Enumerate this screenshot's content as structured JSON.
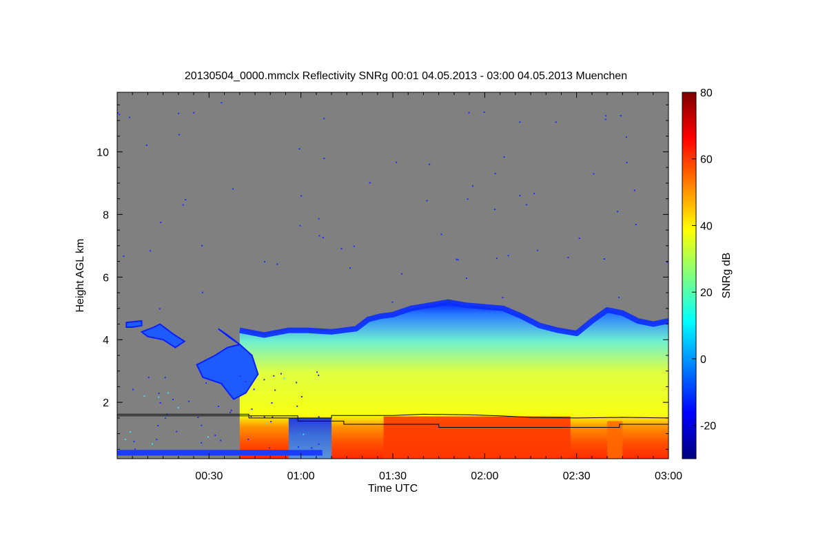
{
  "chart_data": {
    "type": "heatmap",
    "title": "20130504_0000.mmclx Reflectivity SNRg   00:01 04.05.2013 - 03:00 04.05.2013 Muenchen",
    "xlabel": "Time UTC",
    "ylabel": "Height AGL km",
    "x_range_minutes": [
      0,
      180
    ],
    "x_ticks": [
      {
        "label": "00:30",
        "minutes": 30
      },
      {
        "label": "01:00",
        "minutes": 60
      },
      {
        "label": "01:30",
        "minutes": 90
      },
      {
        "label": "02:00",
        "minutes": 120
      },
      {
        "label": "02:30",
        "minutes": 150
      },
      {
        "label": "03:00",
        "minutes": 180
      }
    ],
    "y_range_km": [
      0.2,
      11.9
    ],
    "y_ticks": [
      {
        "label": "2",
        "km": 2
      },
      {
        "label": "4",
        "km": 4
      },
      {
        "label": "6",
        "km": 6
      },
      {
        "label": "8",
        "km": 8
      },
      {
        "label": "10",
        "km": 10
      }
    ],
    "colorbar": {
      "label": "SNRg dB",
      "range": [
        -30,
        80
      ],
      "ticks": [
        {
          "label": "-20",
          "value": -20
        },
        {
          "label": "0",
          "value": 0
        },
        {
          "label": "20",
          "value": 20
        },
        {
          "label": "40",
          "value": 40
        },
        {
          "label": "60",
          "value": 60
        },
        {
          "label": "80",
          "value": 80
        }
      ],
      "colormap": "jet"
    },
    "background_color": "#808080",
    "echo_top_km": [
      [
        0,
        null
      ],
      [
        3,
        4.45
      ],
      [
        8,
        4.5
      ],
      [
        14,
        4.2
      ],
      [
        20,
        null
      ],
      [
        40,
        4.3
      ],
      [
        48,
        4.15
      ],
      [
        56,
        4.3
      ],
      [
        62,
        4.3
      ],
      [
        70,
        4.25
      ],
      [
        78,
        4.35
      ],
      [
        82,
        4.65
      ],
      [
        86,
        4.75
      ],
      [
        90,
        4.8
      ],
      [
        96,
        5.0
      ],
      [
        102,
        5.1
      ],
      [
        108,
        5.2
      ],
      [
        114,
        5.1
      ],
      [
        120,
        5.05
      ],
      [
        126,
        5.0
      ],
      [
        132,
        4.75
      ],
      [
        138,
        4.45
      ],
      [
        144,
        4.3
      ],
      [
        150,
        4.2
      ],
      [
        155,
        4.6
      ],
      [
        160,
        4.95
      ],
      [
        165,
        4.85
      ],
      [
        170,
        4.6
      ],
      [
        175,
        4.5
      ],
      [
        180,
        4.6
      ]
    ],
    "lines": [
      {
        "points": [
          [
            0,
            1.62
          ],
          [
            43,
            1.62
          ],
          [
            43,
            1.5
          ],
          [
            70,
            1.5
          ],
          [
            70,
            1.58
          ],
          [
            90,
            1.58
          ],
          [
            100,
            1.62
          ],
          [
            115,
            1.6
          ],
          [
            125,
            1.57
          ],
          [
            135,
            1.52
          ],
          [
            150,
            1.5
          ],
          [
            165,
            1.52
          ],
          [
            180,
            1.5
          ]
        ]
      },
      {
        "points": [
          [
            0,
            1.57
          ],
          [
            59,
            1.57
          ],
          [
            59,
            1.4
          ],
          [
            74,
            1.4
          ],
          [
            74,
            1.3
          ],
          [
            105,
            1.3
          ],
          [
            105,
            1.2
          ],
          [
            164,
            1.2
          ],
          [
            164,
            1.3
          ],
          [
            180,
            1.3
          ]
        ]
      }
    ]
  }
}
